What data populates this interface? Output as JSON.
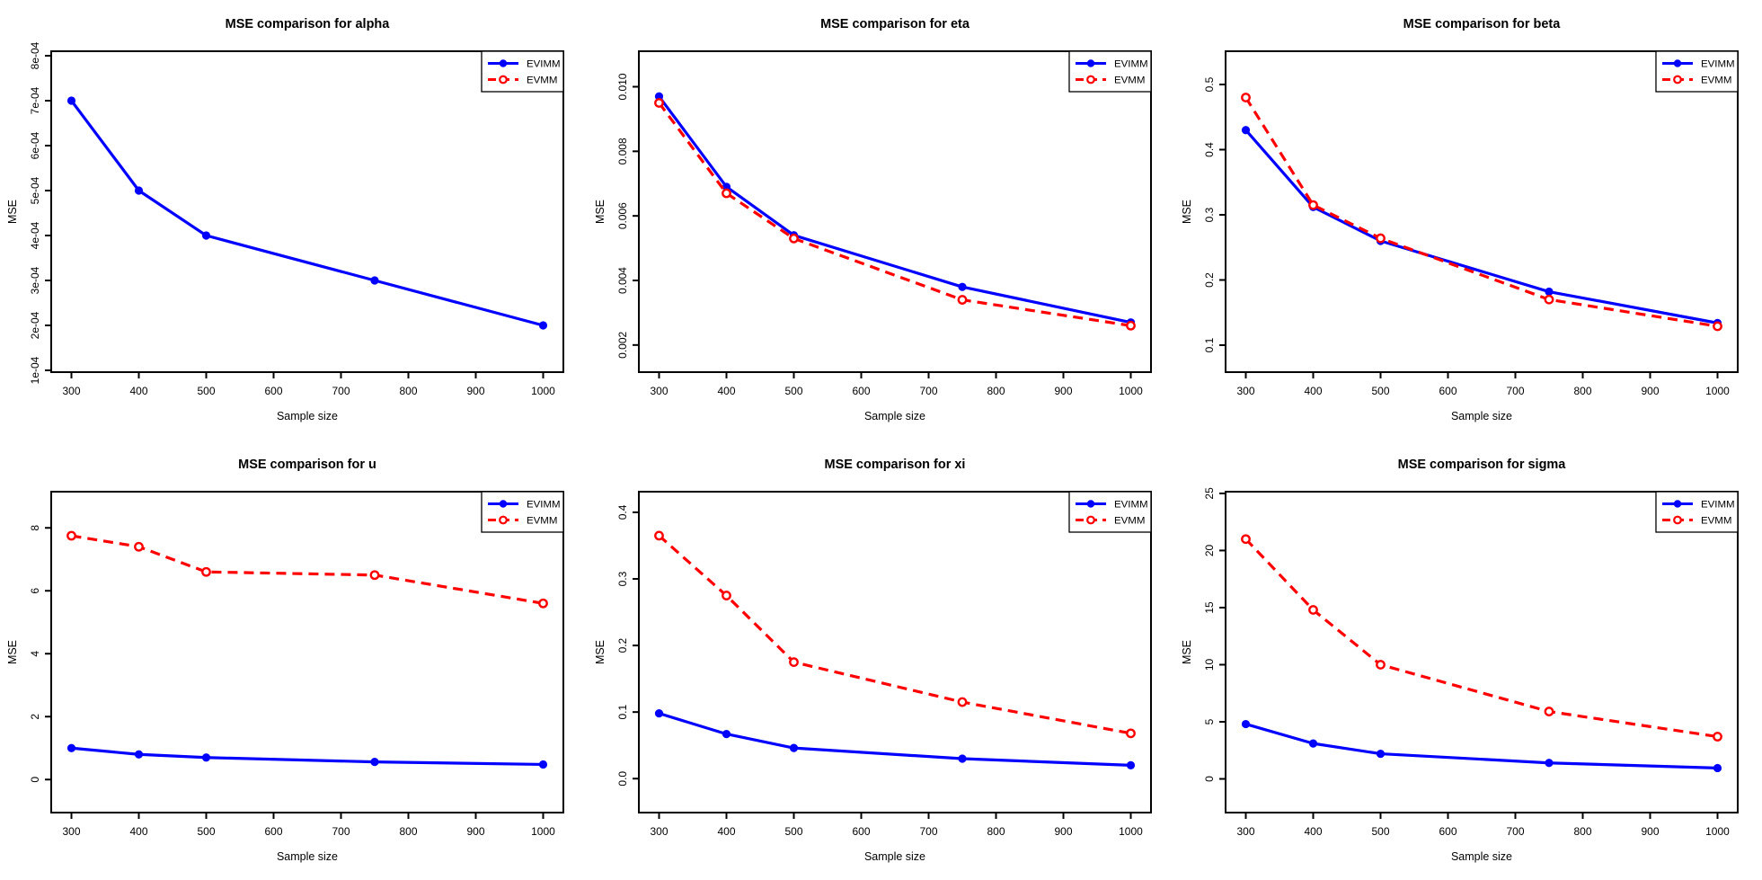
{
  "page": {
    "background": "#ffffff"
  },
  "colors": {
    "evimm": "#0000ff",
    "evmm": "#ff0000",
    "axis": "#000000"
  },
  "chart_data": [
    {
      "type": "line",
      "param": "alpha",
      "title": "MSE comparison for alpha",
      "xlabel": "Sample size",
      "ylabel": "MSE",
      "x": [
        300,
        400,
        500,
        750,
        1000
      ],
      "xticks": [
        300,
        400,
        500,
        600,
        700,
        800,
        900,
        1000
      ],
      "xlim": [
        270,
        1030
      ],
      "ylim": [
        9.6e-05,
        0.00081
      ],
      "yticks": [
        0.0001,
        0.0002,
        0.0003,
        0.0004,
        0.0005,
        0.0006,
        0.0007,
        0.0008
      ],
      "ytick_labels": [
        "1e-04",
        "2e-04",
        "3e-04",
        "4e-04",
        "5e-04",
        "6e-04",
        "7e-04",
        "8e-04"
      ],
      "legend_position": "topright",
      "series": [
        {
          "name": "EVIMM",
          "color": "#0000ff",
          "line": "solid",
          "marker": "filled-circle",
          "values": [
            0.0007,
            0.0005,
            0.0004,
            0.0003,
            0.0002
          ]
        },
        {
          "name": "EVMM",
          "color": "#ff0000",
          "line": "dashed",
          "marker": "open-circle",
          "values": null
        }
      ]
    },
    {
      "type": "line",
      "param": "eta",
      "title": "MSE comparison for eta",
      "xlabel": "Sample size",
      "ylabel": "MSE",
      "x": [
        300,
        400,
        500,
        750,
        1000
      ],
      "xticks": [
        300,
        400,
        500,
        600,
        700,
        800,
        900,
        1000
      ],
      "xlim": [
        270,
        1030
      ],
      "ylim": [
        0.00116,
        0.0111
      ],
      "yticks": [
        0.002,
        0.004,
        0.006,
        0.008,
        0.01
      ],
      "ytick_labels": [
        "0.002",
        "0.004",
        "0.006",
        "0.008",
        "0.010"
      ],
      "legend_position": "topright",
      "series": [
        {
          "name": "EVIMM",
          "color": "#0000ff",
          "line": "solid",
          "marker": "filled-circle",
          "values": [
            0.0097,
            0.0069,
            0.0054,
            0.0038,
            0.0027
          ]
        },
        {
          "name": "EVMM",
          "color": "#ff0000",
          "line": "dashed",
          "marker": "open-circle",
          "values": [
            0.0095,
            0.0067,
            0.0053,
            0.0034,
            0.0026
          ]
        }
      ]
    },
    {
      "type": "line",
      "param": "beta",
      "title": "MSE comparison for beta",
      "xlabel": "Sample size",
      "ylabel": "MSE",
      "x": [
        300,
        400,
        500,
        750,
        1000
      ],
      "xticks": [
        300,
        400,
        500,
        600,
        700,
        800,
        900,
        1000
      ],
      "xlim": [
        270,
        1030
      ],
      "ylim": [
        0.0586,
        0.551
      ],
      "yticks": [
        0.1,
        0.2,
        0.3,
        0.4,
        0.5
      ],
      "ytick_labels": [
        "0.1",
        "0.2",
        "0.3",
        "0.4",
        "0.5"
      ],
      "legend_position": "topright",
      "series": [
        {
          "name": "EVIMM",
          "color": "#0000ff",
          "line": "solid",
          "marker": "filled-circle",
          "values": [
            0.43,
            0.312,
            0.26,
            0.182,
            0.134
          ]
        },
        {
          "name": "EVMM",
          "color": "#ff0000",
          "line": "dashed",
          "marker": "open-circle",
          "values": [
            0.48,
            0.315,
            0.264,
            0.17,
            0.129
          ]
        }
      ]
    },
    {
      "type": "line",
      "param": "u",
      "title": "MSE comparison for u",
      "xlabel": "Sample size",
      "ylabel": "MSE",
      "x": [
        300,
        400,
        500,
        750,
        1000
      ],
      "xticks": [
        300,
        400,
        500,
        600,
        700,
        800,
        900,
        1000
      ],
      "xlim": [
        270,
        1030
      ],
      "ylim": [
        -1.05,
        9.15
      ],
      "yticks": [
        0,
        2,
        4,
        6,
        8
      ],
      "ytick_labels": [
        "0",
        "2",
        "4",
        "6",
        "8"
      ],
      "legend_position": "topright",
      "series": [
        {
          "name": "EVIMM",
          "color": "#0000ff",
          "line": "solid",
          "marker": "filled-circle",
          "values": [
            1.0,
            0.8,
            0.7,
            0.56,
            0.48
          ]
        },
        {
          "name": "EVMM",
          "color": "#ff0000",
          "line": "dashed",
          "marker": "open-circle",
          "values": [
            7.75,
            7.4,
            6.6,
            6.5,
            5.6
          ]
        }
      ]
    },
    {
      "type": "line",
      "param": "xi",
      "title": "MSE comparison for xi",
      "xlabel": "Sample size",
      "ylabel": "MSE",
      "x": [
        300,
        400,
        500,
        750,
        1000
      ],
      "xticks": [
        300,
        400,
        500,
        600,
        700,
        800,
        900,
        1000
      ],
      "xlim": [
        270,
        1030
      ],
      "ylim": [
        -0.051,
        0.431
      ],
      "yticks": [
        0.0,
        0.1,
        0.2,
        0.3,
        0.4
      ],
      "ytick_labels": [
        "0.0",
        "0.1",
        "0.2",
        "0.3",
        "0.4"
      ],
      "legend_position": "topright",
      "series": [
        {
          "name": "EVIMM",
          "color": "#0000ff",
          "line": "solid",
          "marker": "filled-circle",
          "values": [
            0.098,
            0.067,
            0.046,
            0.03,
            0.02
          ]
        },
        {
          "name": "EVMM",
          "color": "#ff0000",
          "line": "dashed",
          "marker": "open-circle",
          "values": [
            0.365,
            0.275,
            0.175,
            0.115,
            0.068
          ]
        }
      ]
    },
    {
      "type": "line",
      "param": "sigma",
      "title": "MSE comparison for sigma",
      "xlabel": "Sample size",
      "ylabel": "MSE",
      "x": [
        300,
        400,
        500,
        750,
        1000
      ],
      "xticks": [
        300,
        400,
        500,
        600,
        700,
        800,
        900,
        1000
      ],
      "xlim": [
        270,
        1030
      ],
      "ylim": [
        -2.95,
        25.15
      ],
      "yticks": [
        0,
        5,
        10,
        15,
        20,
        25
      ],
      "ytick_labels": [
        "0",
        "5",
        "10",
        "15",
        "20",
        "25"
      ],
      "legend_position": "topright",
      "series": [
        {
          "name": "EVIMM",
          "color": "#0000ff",
          "line": "solid",
          "marker": "filled-circle",
          "values": [
            4.8,
            3.1,
            2.2,
            1.4,
            0.95
          ]
        },
        {
          "name": "EVMM",
          "color": "#ff0000",
          "line": "dashed",
          "marker": "open-circle",
          "values": [
            21.0,
            14.8,
            10.0,
            5.9,
            3.7
          ]
        }
      ]
    }
  ]
}
